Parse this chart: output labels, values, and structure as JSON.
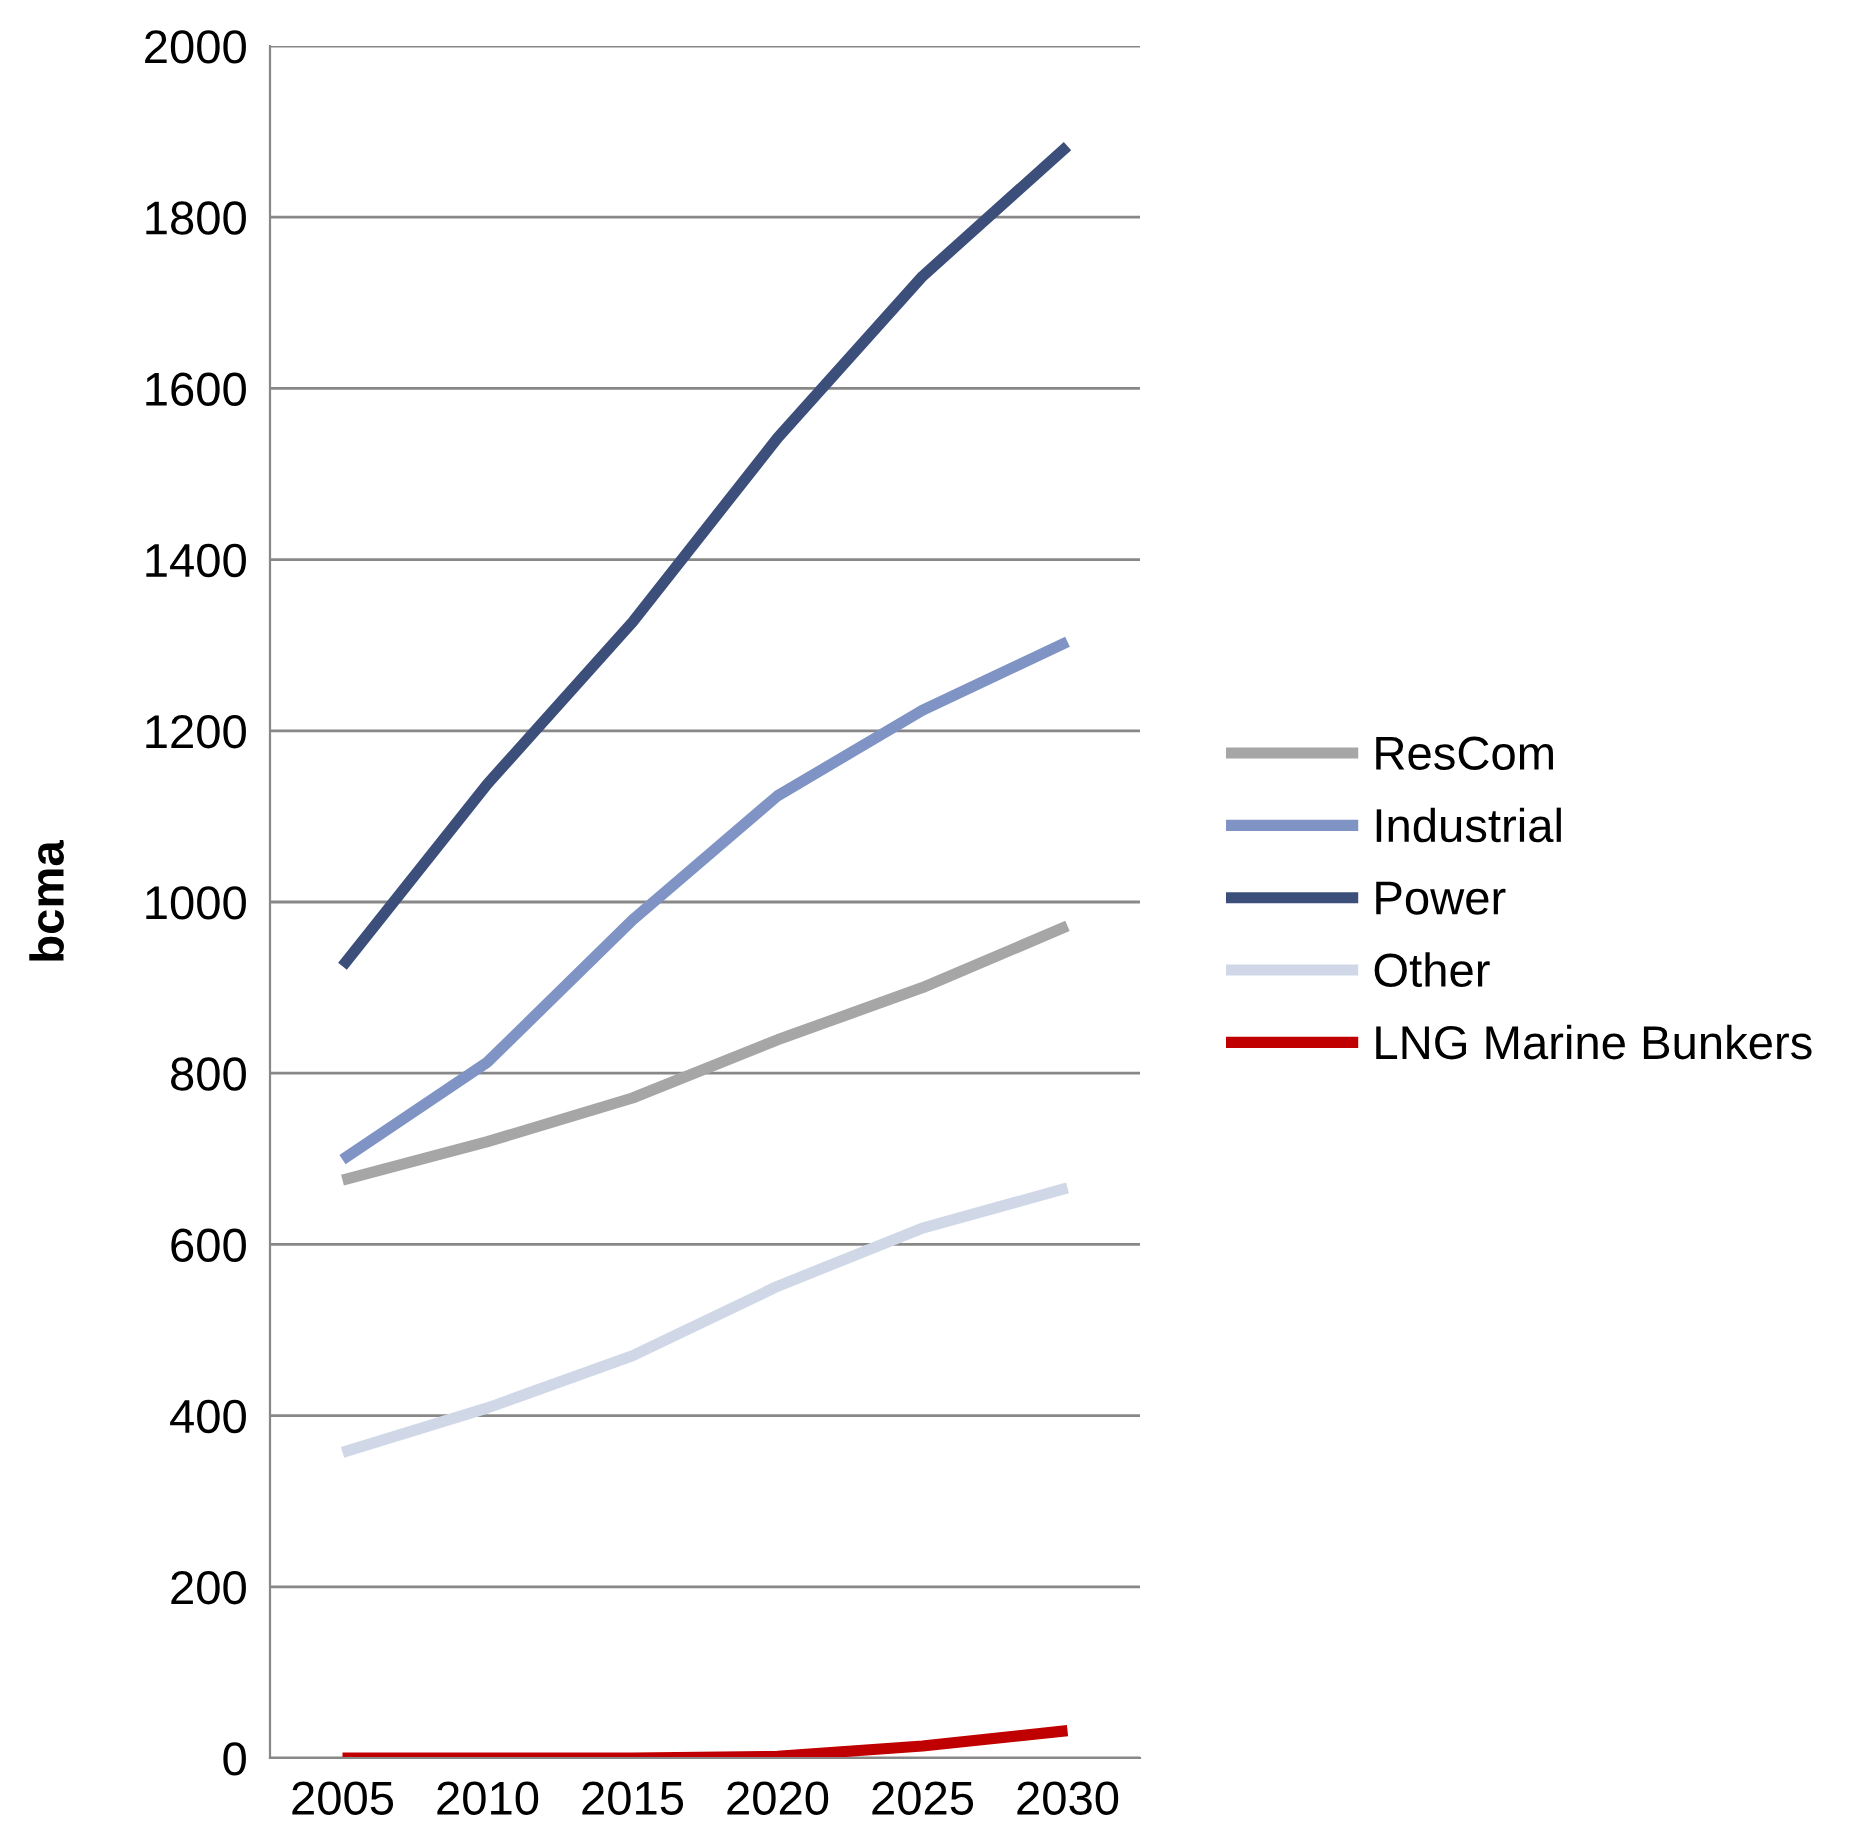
{
  "chart_data": {
    "type": "line",
    "ylabel": "bcma",
    "categories": [
      "2005",
      "2010",
      "2015",
      "2020",
      "2025",
      "2030"
    ],
    "series": [
      {
        "name": "ResCom",
        "color": "#a6a6a6",
        "values": [
          675,
          720,
          771,
          839,
          900,
          972
        ]
      },
      {
        "name": "Industrial",
        "color": "#7f93c4",
        "values": [
          699,
          813,
          979,
          1124,
          1224,
          1304
        ]
      },
      {
        "name": "Power",
        "color": "#3c4e7a",
        "values": [
          925,
          1138,
          1327,
          1542,
          1731,
          1883
        ]
      },
      {
        "name": "Other",
        "color": "#d0d8e8",
        "values": [
          357,
          409,
          470,
          551,
          619,
          666
        ]
      },
      {
        "name": "LNG Marine Bunkers",
        "color": "#c00000",
        "values": [
          0,
          0,
          0,
          2,
          14,
          32
        ]
      }
    ],
    "ylim": [
      0,
      2000
    ],
    "yticks": [
      0,
      200,
      400,
      600,
      800,
      1000,
      1200,
      1400,
      1600,
      1800,
      2000
    ],
    "grid": "y",
    "legend": "right",
    "marker": "none",
    "line_style": "solid"
  }
}
